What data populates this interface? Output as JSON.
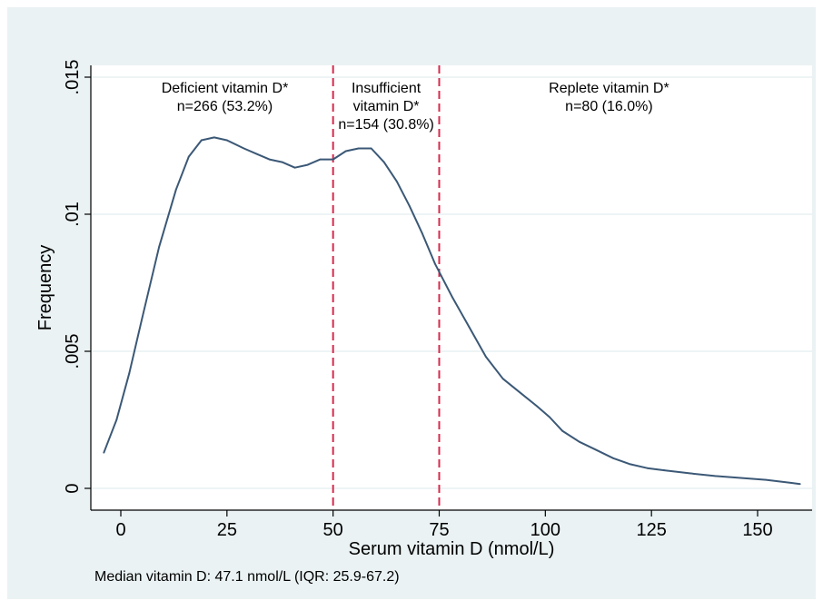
{
  "chart_data": {
    "type": "line",
    "title": "",
    "xlabel": "Serum vitamin D (nmol/L)",
    "ylabel": "Frequency",
    "xlim": [
      -8,
      162
    ],
    "ylim": [
      0,
      0.015
    ],
    "x_ticks": [
      {
        "value": 0,
        "label": "0"
      },
      {
        "value": 25,
        "label": "25"
      },
      {
        "value": 50,
        "label": "50"
      },
      {
        "value": 75,
        "label": "75"
      },
      {
        "value": 100,
        "label": "100"
      },
      {
        "value": 125,
        "label": "125"
      },
      {
        "value": 150,
        "label": "150"
      }
    ],
    "y_ticks": [
      {
        "value": 0,
        "label": "0"
      },
      {
        "value": 0.005,
        "label": ".005"
      },
      {
        "value": 0.01,
        "label": ".01"
      },
      {
        "value": 0.015,
        "label": ".015"
      }
    ],
    "grid": true,
    "series": [
      {
        "color": "#3b5876",
        "x": [
          -4,
          -1,
          2,
          5,
          9,
          13,
          16,
          19,
          22,
          25,
          29,
          32,
          35,
          38,
          41,
          44,
          47,
          50,
          53,
          56,
          59,
          62,
          65,
          68,
          71,
          74,
          78,
          82,
          86,
          90,
          94,
          98,
          101,
          104,
          108,
          112,
          116,
          120,
          124,
          128,
          134,
          140,
          146,
          152,
          158,
          160
        ],
        "y": [
          0.0013,
          0.0025,
          0.0042,
          0.0062,
          0.0088,
          0.0109,
          0.0121,
          0.0127,
          0.0128,
          0.0127,
          0.0124,
          0.0122,
          0.012,
          0.0119,
          0.0117,
          0.0118,
          0.012,
          0.012,
          0.0123,
          0.0124,
          0.0124,
          0.0119,
          0.0112,
          0.0103,
          0.0093,
          0.0082,
          0.007,
          0.0059,
          0.0048,
          0.004,
          0.0035,
          0.003,
          0.0026,
          0.0021,
          0.0017,
          0.0014,
          0.0011,
          0.00088,
          0.00074,
          0.00066,
          0.00055,
          0.00045,
          0.00038,
          0.00031,
          0.0002,
          0.00016
        ]
      }
    ],
    "thresholds": [
      {
        "x": 50,
        "color": "#d6294d",
        "style": "dashed"
      },
      {
        "x": 75,
        "color": "#d6294d",
        "style": "dashed"
      }
    ],
    "annotations": [
      {
        "x": 24.5,
        "y": 0.0148,
        "lines": [
          "Deficient vitamin D*",
          "n=266 (53.2%)"
        ]
      },
      {
        "x": 62.5,
        "y": 0.0148,
        "lines": [
          "Insufficient",
          "vitamin D*",
          "n=154 (30.8%)"
        ]
      },
      {
        "x": 115,
        "y": 0.0148,
        "lines": [
          "Replete vitamin D*",
          "n=80 (16.0%)"
        ]
      }
    ],
    "footnote": "Median vitamin D: 47.1 nmol/L (IQR: 25.9-67.2)"
  }
}
